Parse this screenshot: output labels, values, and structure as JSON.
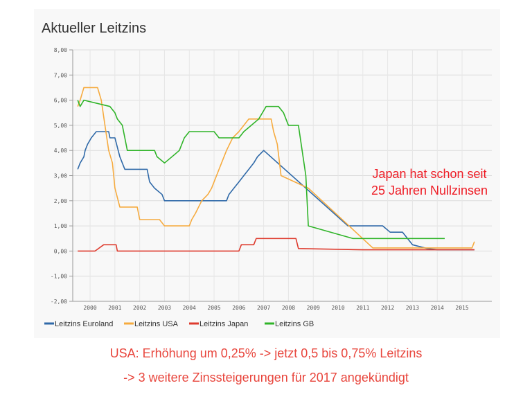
{
  "chart_data": {
    "type": "line",
    "title": "Aktueller Leitzins",
    "xlabel": "",
    "ylabel": "",
    "xlim": [
      1999.3,
      2016.2
    ],
    "ylim": [
      -2,
      8
    ],
    "yticks": [
      "8,00",
      "7,00",
      "6,00",
      "5,00",
      "4,00",
      "3,00",
      "2,00",
      "1,00",
      "0,00",
      "-1,00",
      "-2,00"
    ],
    "yvalues": [
      8,
      7,
      6,
      5,
      4,
      3,
      2,
      1,
      0,
      -1,
      -2
    ],
    "xticks": [
      "2000",
      "2001",
      "2002",
      "2003",
      "2004",
      "2005",
      "2006",
      "2007",
      "2008",
      "2009",
      "2010",
      "2011",
      "2012",
      "2013",
      "2014",
      "2015"
    ],
    "grid": true,
    "legend": "bottom-left",
    "annotation": [
      "Japan hat schon seit",
      "25 Jahren Nullzinsen"
    ],
    "series": [
      {
        "name": "Leitzins Euroland",
        "color": "#2f69a8",
        "points": [
          [
            1999.5,
            3.25
          ],
          [
            1999.6,
            3.5
          ],
          [
            1999.75,
            3.75
          ],
          [
            1999.8,
            4.0
          ],
          [
            1999.9,
            4.25
          ],
          [
            2000.05,
            4.5
          ],
          [
            2000.25,
            4.75
          ],
          [
            2000.75,
            4.75
          ],
          [
            2000.8,
            4.5
          ],
          [
            2001.0,
            4.5
          ],
          [
            2001.2,
            3.75
          ],
          [
            2001.4,
            3.25
          ],
          [
            2002.3,
            3.25
          ],
          [
            2002.4,
            2.75
          ],
          [
            2002.6,
            2.5
          ],
          [
            2002.9,
            2.25
          ],
          [
            2003.0,
            2.0
          ],
          [
            2005.5,
            2.0
          ],
          [
            2005.6,
            2.25
          ],
          [
            2005.8,
            2.5
          ],
          [
            2006.0,
            2.75
          ],
          [
            2006.2,
            3.0
          ],
          [
            2006.4,
            3.25
          ],
          [
            2006.6,
            3.5
          ],
          [
            2006.75,
            3.75
          ],
          [
            2007.0,
            4.0
          ],
          [
            2010.4,
            1.0
          ],
          [
            2011.8,
            1.0
          ],
          [
            2012.1,
            0.75
          ],
          [
            2012.6,
            0.75
          ],
          [
            2012.8,
            0.5
          ],
          [
            2013.0,
            0.25
          ],
          [
            2013.6,
            0.1
          ],
          [
            2014.0,
            0.05
          ],
          [
            2015.5,
            0.05
          ]
        ]
      },
      {
        "name": "Leitzins USA",
        "color": "#f6ab3f",
        "points": [
          [
            1999.5,
            5.75
          ],
          [
            1999.6,
            6.0
          ],
          [
            1999.75,
            6.5
          ],
          [
            2000.3,
            6.5
          ],
          [
            2000.45,
            6.0
          ],
          [
            2000.6,
            5.0
          ],
          [
            2000.75,
            4.0
          ],
          [
            2000.9,
            3.5
          ],
          [
            2001.0,
            2.5
          ],
          [
            2001.2,
            1.75
          ],
          [
            2001.9,
            1.75
          ],
          [
            2002.0,
            1.25
          ],
          [
            2002.8,
            1.25
          ],
          [
            2003.0,
            1.0
          ],
          [
            2004.0,
            1.0
          ],
          [
            2004.1,
            1.25
          ],
          [
            2004.25,
            1.5
          ],
          [
            2004.5,
            2.0
          ],
          [
            2004.75,
            2.25
          ],
          [
            2004.9,
            2.5
          ],
          [
            2005.1,
            3.0
          ],
          [
            2005.3,
            3.5
          ],
          [
            2005.5,
            4.0
          ],
          [
            2005.75,
            4.5
          ],
          [
            2006.0,
            4.75
          ],
          [
            2006.2,
            5.0
          ],
          [
            2006.4,
            5.25
          ],
          [
            2007.3,
            5.25
          ],
          [
            2007.4,
            4.75
          ],
          [
            2007.55,
            4.25
          ],
          [
            2007.7,
            3.0
          ],
          [
            2008.8,
            2.5
          ],
          [
            2011.4,
            0.125
          ],
          [
            2015.4,
            0.125
          ],
          [
            2015.5,
            0.375
          ]
        ]
      },
      {
        "name": "Leitzins Japan",
        "color": "#de3b2e",
        "points": [
          [
            1999.5,
            0.0
          ],
          [
            2000.2,
            0.0
          ],
          [
            2000.55,
            0.25
          ],
          [
            2001.05,
            0.25
          ],
          [
            2001.1,
            0.0
          ],
          [
            2006.0,
            0.0
          ],
          [
            2006.1,
            0.25
          ],
          [
            2006.6,
            0.25
          ],
          [
            2006.7,
            0.5
          ],
          [
            2008.3,
            0.5
          ],
          [
            2008.4,
            0.1
          ],
          [
            2011.0,
            0.05
          ],
          [
            2015.5,
            0.05
          ]
        ]
      },
      {
        "name": "Leitzins GB",
        "color": "#2fb428",
        "points": [
          [
            1999.5,
            6.0
          ],
          [
            1999.6,
            5.75
          ],
          [
            1999.75,
            6.0
          ],
          [
            2000.8,
            5.75
          ],
          [
            2001.0,
            5.5
          ],
          [
            2001.1,
            5.25
          ],
          [
            2001.3,
            5.0
          ],
          [
            2001.4,
            4.5
          ],
          [
            2001.5,
            4.0
          ],
          [
            2002.6,
            4.0
          ],
          [
            2002.7,
            3.75
          ],
          [
            2003.0,
            3.5
          ],
          [
            2003.3,
            3.75
          ],
          [
            2003.6,
            4.0
          ],
          [
            2003.8,
            4.5
          ],
          [
            2004.0,
            4.75
          ],
          [
            2005.0,
            4.75
          ],
          [
            2005.2,
            4.5
          ],
          [
            2006.0,
            4.5
          ],
          [
            2006.2,
            4.75
          ],
          [
            2006.5,
            5.0
          ],
          [
            2006.8,
            5.25
          ],
          [
            2007.1,
            5.75
          ],
          [
            2007.6,
            5.75
          ],
          [
            2007.8,
            5.5
          ],
          [
            2008.0,
            5.0
          ],
          [
            2008.4,
            5.0
          ],
          [
            2008.7,
            3.0
          ],
          [
            2008.8,
            1.0
          ],
          [
            2010.6,
            0.5
          ],
          [
            2014.3,
            0.5
          ]
        ]
      }
    ]
  },
  "notes": {
    "line1": "USA: Erhöhung um 0,25% -> jetzt 0,5 bis 0,75% Leitzins",
    "line2": "-> 3 weitere Zinssteigerungen für 2017 angekündigt"
  }
}
